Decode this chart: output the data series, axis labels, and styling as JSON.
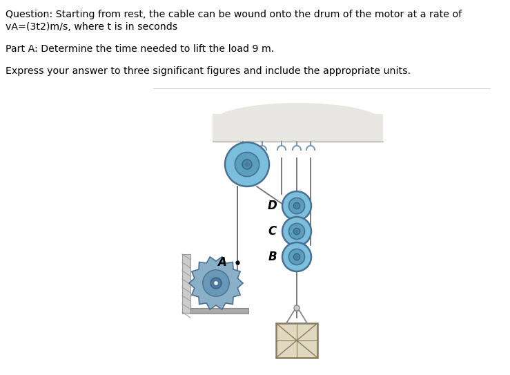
{
  "title_line1": "Question: Starting from rest, the cable can be wound onto the drum of the motor at a rate of",
  "title_line2": "vA=(3t2)m/s, where t is in seconds",
  "part_a": "Part A: Determine the time needed to lift the load 9 m.",
  "express": "Express your answer to three significant figures and include the appropriate units.",
  "bg_color": "#ffffff",
  "text_color": "#000000",
  "divider_color": "#cccccc",
  "pulley_outer": "#7bbedd",
  "pulley_mid": "#5a9fc0",
  "pulley_hub": "#4a8aaa",
  "cable_color": "#707070",
  "ceiling_top": "#e8e6e0",
  "ceiling_bot": "#d5d3cc",
  "hook_color": "#7a9ab0",
  "motor_gear": "#8ab0c8",
  "motor_inner": "#6898b8",
  "motor_center": "#4a78a0",
  "box_fill": "#e0d8c0",
  "box_line": "#8a7a5a",
  "shelf_color": "#aaaaaa",
  "wall_color": "#cccccc"
}
